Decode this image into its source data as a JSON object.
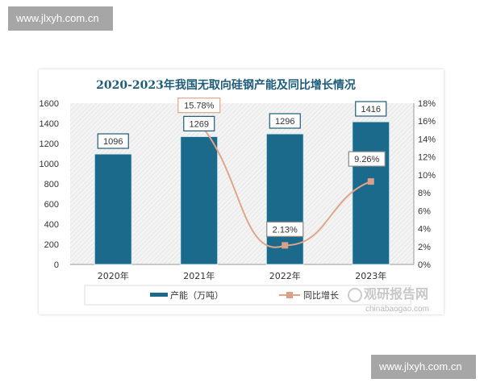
{
  "watermarks": [
    "www.jlxyh.com.cn",
    "www.jlxyh.com.cn"
  ],
  "logo": {
    "name": "观研报告网",
    "url": "chinabaogao.com"
  },
  "chart_data": {
    "type": "bar+line",
    "title": "2020-2023年我国无取向硅钢产能及同比增长情况",
    "categories": [
      "2020年",
      "2021年",
      "2022年",
      "2023年"
    ],
    "series": [
      {
        "name": "产能（万吨）",
        "type": "bar",
        "axis": "left",
        "values": [
          1096,
          1269,
          1296,
          1416
        ],
        "labels": [
          "1096",
          "1269",
          "1296",
          "1416"
        ],
        "color": "#1b6a8c"
      },
      {
        "name": "同比增长",
        "type": "line",
        "axis": "right",
        "values": [
          null,
          15.78,
          2.13,
          9.26
        ],
        "labels": [
          "",
          "15.78%",
          "2.13%",
          "9.26%"
        ],
        "color": "#e0a58a"
      }
    ],
    "left_axis": {
      "ylim": [
        0,
        1600
      ],
      "ticks": [
        "0",
        "200",
        "400",
        "600",
        "800",
        "1000",
        "1200",
        "1400",
        "1600"
      ]
    },
    "right_axis": {
      "ylim": [
        0,
        18
      ],
      "ticks": [
        "0%",
        "2%",
        "4%",
        "6%",
        "8%",
        "10%",
        "12%",
        "14%",
        "16%",
        "18%"
      ]
    },
    "legend": "bottom"
  }
}
